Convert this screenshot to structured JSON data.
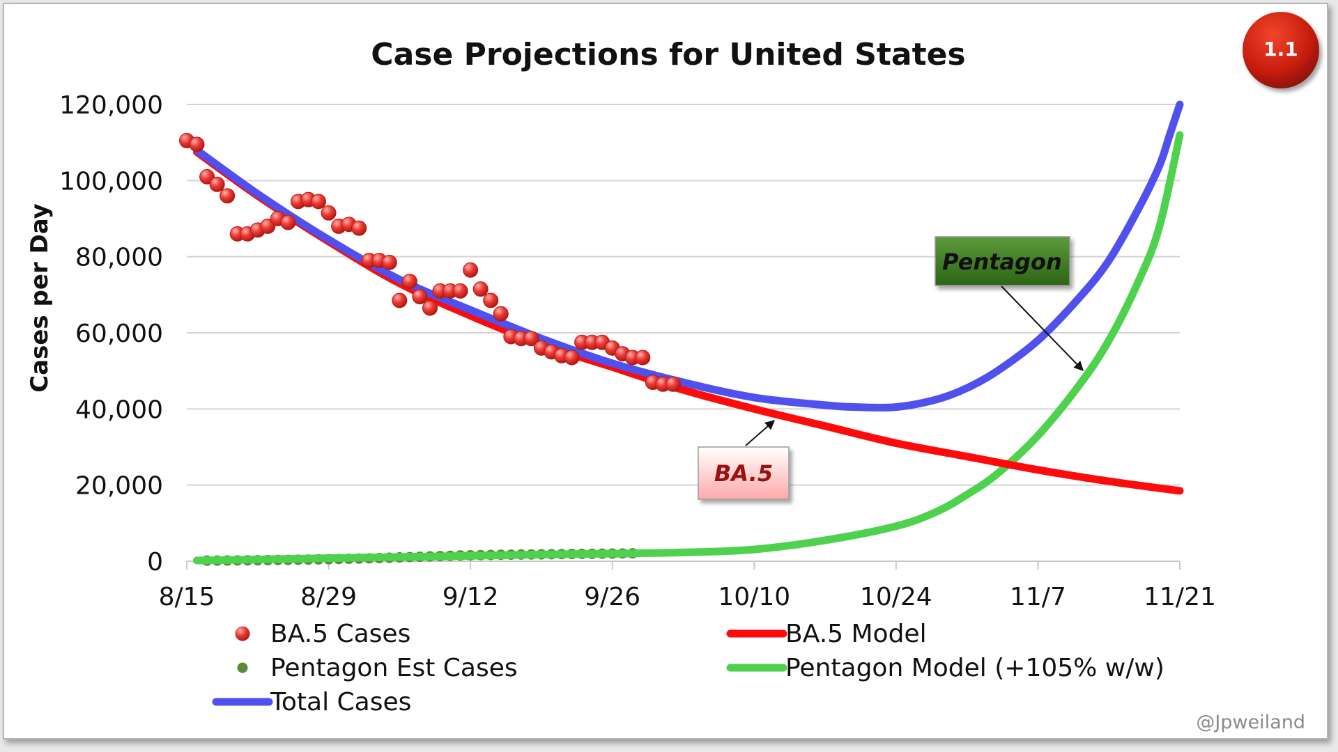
{
  "badge": {
    "label": "1.1",
    "color": "#c81d0e"
  },
  "credit": "@Jpweiland",
  "colors": {
    "ba5_cases": "#e8302a",
    "ba5_model": "#ff0a0a",
    "pentagon_cases": "#5a8a32",
    "pentagon_model": "#4ed24e",
    "total_cases": "#5050ee",
    "gridline": "#d4d4d4",
    "ba5_callout_fill": "#ffc6c6",
    "pentagon_callout_fill": "#3d7a22"
  },
  "callouts": {
    "ba5": {
      "label": "BA.5",
      "points_to": "BA.5 Model"
    },
    "pentagon": {
      "label": "Pentagon",
      "points_to": "Pentagon Model (+105% w/w)"
    }
  },
  "chart_data": {
    "type": "line",
    "title": "Case Projections for United States",
    "xlabel": "",
    "ylabel": "Cases per Day",
    "x_unit": "days since 8/15",
    "xlim": [
      0,
      98
    ],
    "ylim": [
      0,
      120000
    ],
    "x_ticks": [
      {
        "x": 0,
        "label": "8/15"
      },
      {
        "x": 14,
        "label": "8/29"
      },
      {
        "x": 28,
        "label": "9/12"
      },
      {
        "x": 42,
        "label": "9/26"
      },
      {
        "x": 56,
        "label": "10/10"
      },
      {
        "x": 70,
        "label": "10/24"
      },
      {
        "x": 84,
        "label": "11/7"
      },
      {
        "x": 98,
        "label": "11/21"
      }
    ],
    "y_ticks": [
      {
        "y": 0,
        "label": "0"
      },
      {
        "y": 20000,
        "label": "20,000"
      },
      {
        "y": 40000,
        "label": "40,000"
      },
      {
        "y": 60000,
        "label": "60,000"
      },
      {
        "y": 80000,
        "label": "80,000"
      },
      {
        "y": 100000,
        "label": "100,000"
      },
      {
        "y": 120000,
        "label": "120,000"
      }
    ],
    "grid": true,
    "legend": [
      {
        "key": "ba5_cases",
        "label": "BA.5 Cases",
        "marker": "dot"
      },
      {
        "key": "ba5_model",
        "label": "BA.5 Model",
        "marker": "line"
      },
      {
        "key": "pentagon_cases",
        "label": "Pentagon Est Cases",
        "marker": "small-dot"
      },
      {
        "key": "pentagon_model",
        "label": "Pentagon Model (+105% w/w)",
        "marker": "line"
      },
      {
        "key": "total_cases",
        "label": "Total Cases",
        "marker": "line"
      }
    ],
    "series": [
      {
        "key": "ba5_cases",
        "name": "BA.5 Cases",
        "kind": "scatter",
        "points": [
          [
            0,
            110500
          ],
          [
            1,
            109500
          ],
          [
            2,
            101000
          ],
          [
            3,
            99000
          ],
          [
            4,
            96000
          ],
          [
            5,
            86000
          ],
          [
            6,
            86000
          ],
          [
            7,
            87000
          ],
          [
            8,
            88000
          ],
          [
            9,
            90000
          ],
          [
            10,
            89000
          ],
          [
            11,
            94500
          ],
          [
            12,
            95000
          ],
          [
            13,
            94500
          ],
          [
            14,
            91500
          ],
          [
            15,
            88000
          ],
          [
            16,
            88500
          ],
          [
            17,
            87500
          ],
          [
            18,
            79000
          ],
          [
            19,
            79000
          ],
          [
            20,
            78500
          ],
          [
            21,
            68500
          ],
          [
            22,
            73500
          ],
          [
            23,
            69500
          ],
          [
            24,
            66500
          ],
          [
            25,
            71000
          ],
          [
            26,
            71000
          ],
          [
            27,
            71000
          ],
          [
            28,
            76500
          ],
          [
            29,
            71500
          ],
          [
            30,
            68500
          ],
          [
            31,
            65000
          ],
          [
            32,
            59000
          ],
          [
            33,
            58500
          ],
          [
            34,
            58500
          ],
          [
            35,
            56000
          ],
          [
            36,
            55000
          ],
          [
            37,
            54000
          ],
          [
            38,
            53500
          ],
          [
            39,
            57500
          ],
          [
            40,
            57500
          ],
          [
            41,
            57500
          ],
          [
            42,
            56000
          ],
          [
            43,
            54500
          ],
          [
            44,
            53500
          ],
          [
            45,
            53500
          ],
          [
            46,
            47000
          ],
          [
            47,
            46500
          ],
          [
            48,
            46500
          ]
        ]
      },
      {
        "key": "pentagon_cases",
        "name": "Pentagon Est Cases",
        "kind": "scatter",
        "points": [
          [
            2,
            150
          ],
          [
            3,
            170
          ],
          [
            4,
            190
          ],
          [
            5,
            210
          ],
          [
            6,
            230
          ],
          [
            7,
            260
          ],
          [
            8,
            290
          ],
          [
            9,
            320
          ],
          [
            10,
            350
          ],
          [
            11,
            390
          ],
          [
            12,
            430
          ],
          [
            13,
            470
          ],
          [
            14,
            520
          ],
          [
            15,
            570
          ],
          [
            16,
            630
          ],
          [
            17,
            690
          ],
          [
            18,
            760
          ],
          [
            19,
            830
          ],
          [
            20,
            910
          ],
          [
            21,
            1000
          ],
          [
            22,
            1080
          ],
          [
            23,
            1160
          ],
          [
            24,
            1250
          ],
          [
            25,
            1340
          ],
          [
            26,
            1420
          ],
          [
            27,
            1500
          ],
          [
            28,
            1560
          ],
          [
            29,
            1610
          ],
          [
            30,
            1650
          ],
          [
            31,
            1700
          ],
          [
            32,
            1720
          ],
          [
            33,
            1750
          ],
          [
            34,
            1780
          ],
          [
            35,
            1800
          ],
          [
            36,
            1830
          ],
          [
            37,
            1860
          ],
          [
            38,
            1890
          ],
          [
            39,
            1920
          ],
          [
            40,
            1950
          ],
          [
            41,
            1980
          ],
          [
            42,
            2010
          ],
          [
            43,
            2040
          ],
          [
            44,
            2070
          ]
        ]
      },
      {
        "key": "ba5_model",
        "name": "BA.5 Model",
        "kind": "line",
        "points": [
          [
            1,
            107500
          ],
          [
            7,
            96000
          ],
          [
            14,
            84000
          ],
          [
            21,
            73000
          ],
          [
            28,
            64500
          ],
          [
            35,
            57000
          ],
          [
            42,
            51000
          ],
          [
            49,
            45000
          ],
          [
            56,
            40000
          ],
          [
            63,
            35500
          ],
          [
            70,
            31000
          ],
          [
            77,
            27500
          ],
          [
            84,
            24000
          ],
          [
            91,
            21000
          ],
          [
            98,
            18500
          ]
        ]
      },
      {
        "key": "pentagon_model",
        "name": "Pentagon Model (+105% w/w)",
        "kind": "line",
        "points": [
          [
            1,
            180
          ],
          [
            7,
            450
          ],
          [
            14,
            800
          ],
          [
            21,
            1100
          ],
          [
            28,
            1400
          ],
          [
            35,
            1750
          ],
          [
            42,
            2000
          ],
          [
            49,
            2300
          ],
          [
            56,
            3100
          ],
          [
            63,
            5500
          ],
          [
            70,
            9200
          ],
          [
            74,
            13000
          ],
          [
            77,
            17500
          ],
          [
            80,
            23000
          ],
          [
            84,
            33000
          ],
          [
            88,
            46000
          ],
          [
            91,
            58000
          ],
          [
            94,
            74000
          ],
          [
            96,
            88000
          ],
          [
            98,
            112000
          ]
        ]
      },
      {
        "key": "total_cases",
        "name": "Total Cases",
        "kind": "line",
        "points": [
          [
            1,
            108000
          ],
          [
            7,
            96500
          ],
          [
            14,
            84500
          ],
          [
            21,
            74000
          ],
          [
            28,
            66000
          ],
          [
            35,
            58500
          ],
          [
            42,
            52000
          ],
          [
            49,
            47000
          ],
          [
            56,
            43000
          ],
          [
            63,
            41000
          ],
          [
            66,
            40500
          ],
          [
            70,
            40500
          ],
          [
            74,
            42500
          ],
          [
            77,
            45500
          ],
          [
            80,
            50000
          ],
          [
            84,
            58000
          ],
          [
            88,
            69000
          ],
          [
            91,
            79000
          ],
          [
            94,
            93000
          ],
          [
            96,
            104000
          ],
          [
            97,
            112000
          ],
          [
            98,
            120000
          ]
        ]
      }
    ]
  }
}
